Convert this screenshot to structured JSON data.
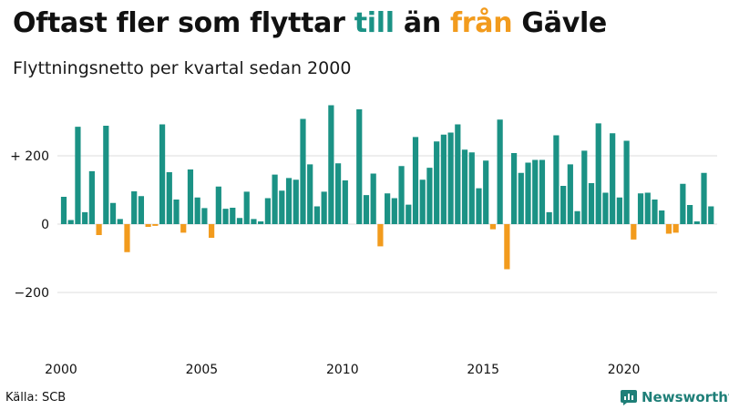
{
  "title": {
    "part1": "Oftast fler som flyttar ",
    "in_word": "till",
    "part2": " än ",
    "out_word": "från",
    "part3": " Gävle"
  },
  "subtitle": "Flyttningsnetto per kvartal sedan 2000",
  "source": "Källa: SCB",
  "brand": "Newsworthy",
  "colors": {
    "positive": "#1b9285",
    "negative": "#f29b1d",
    "grid": "#dddddd",
    "text": "#111111"
  },
  "chart_data": {
    "type": "bar",
    "title": "Oftast fler som flyttar till än från Gävle",
    "subtitle": "Flyttningsnetto per kvartal sedan 2000",
    "start_year": 2000,
    "quarters_per_year": 4,
    "ylim": [
      -300,
      350
    ],
    "yticks": [
      {
        "value": 200,
        "label": "+ 200"
      },
      {
        "value": 0,
        "label": "0"
      },
      {
        "value": -200,
        "label": "−200"
      }
    ],
    "xticks": [
      2000,
      2005,
      2010,
      2015,
      2020
    ],
    "grid": true,
    "values": [
      80,
      12,
      285,
      35,
      155,
      -32,
      288,
      62,
      15,
      -82,
      96,
      82,
      -8,
      -5,
      292,
      152,
      72,
      -25,
      160,
      78,
      47,
      -40,
      110,
      45,
      48,
      18,
      95,
      15,
      8,
      76,
      145,
      98,
      135,
      130,
      308,
      175,
      52,
      95,
      348,
      178,
      128,
      0,
      336,
      85,
      148,
      -65,
      90,
      76,
      170,
      57,
      255,
      130,
      165,
      242,
      262,
      268,
      292,
      218,
      210,
      105,
      186,
      -15,
      306,
      -132,
      208,
      150,
      180,
      188,
      188,
      35,
      260,
      112,
      175,
      38,
      215,
      120,
      295,
      92,
      266,
      78,
      244,
      -45,
      90,
      92,
      72,
      40,
      -28,
      -25,
      118,
      56,
      8,
      150,
      52
    ]
  }
}
